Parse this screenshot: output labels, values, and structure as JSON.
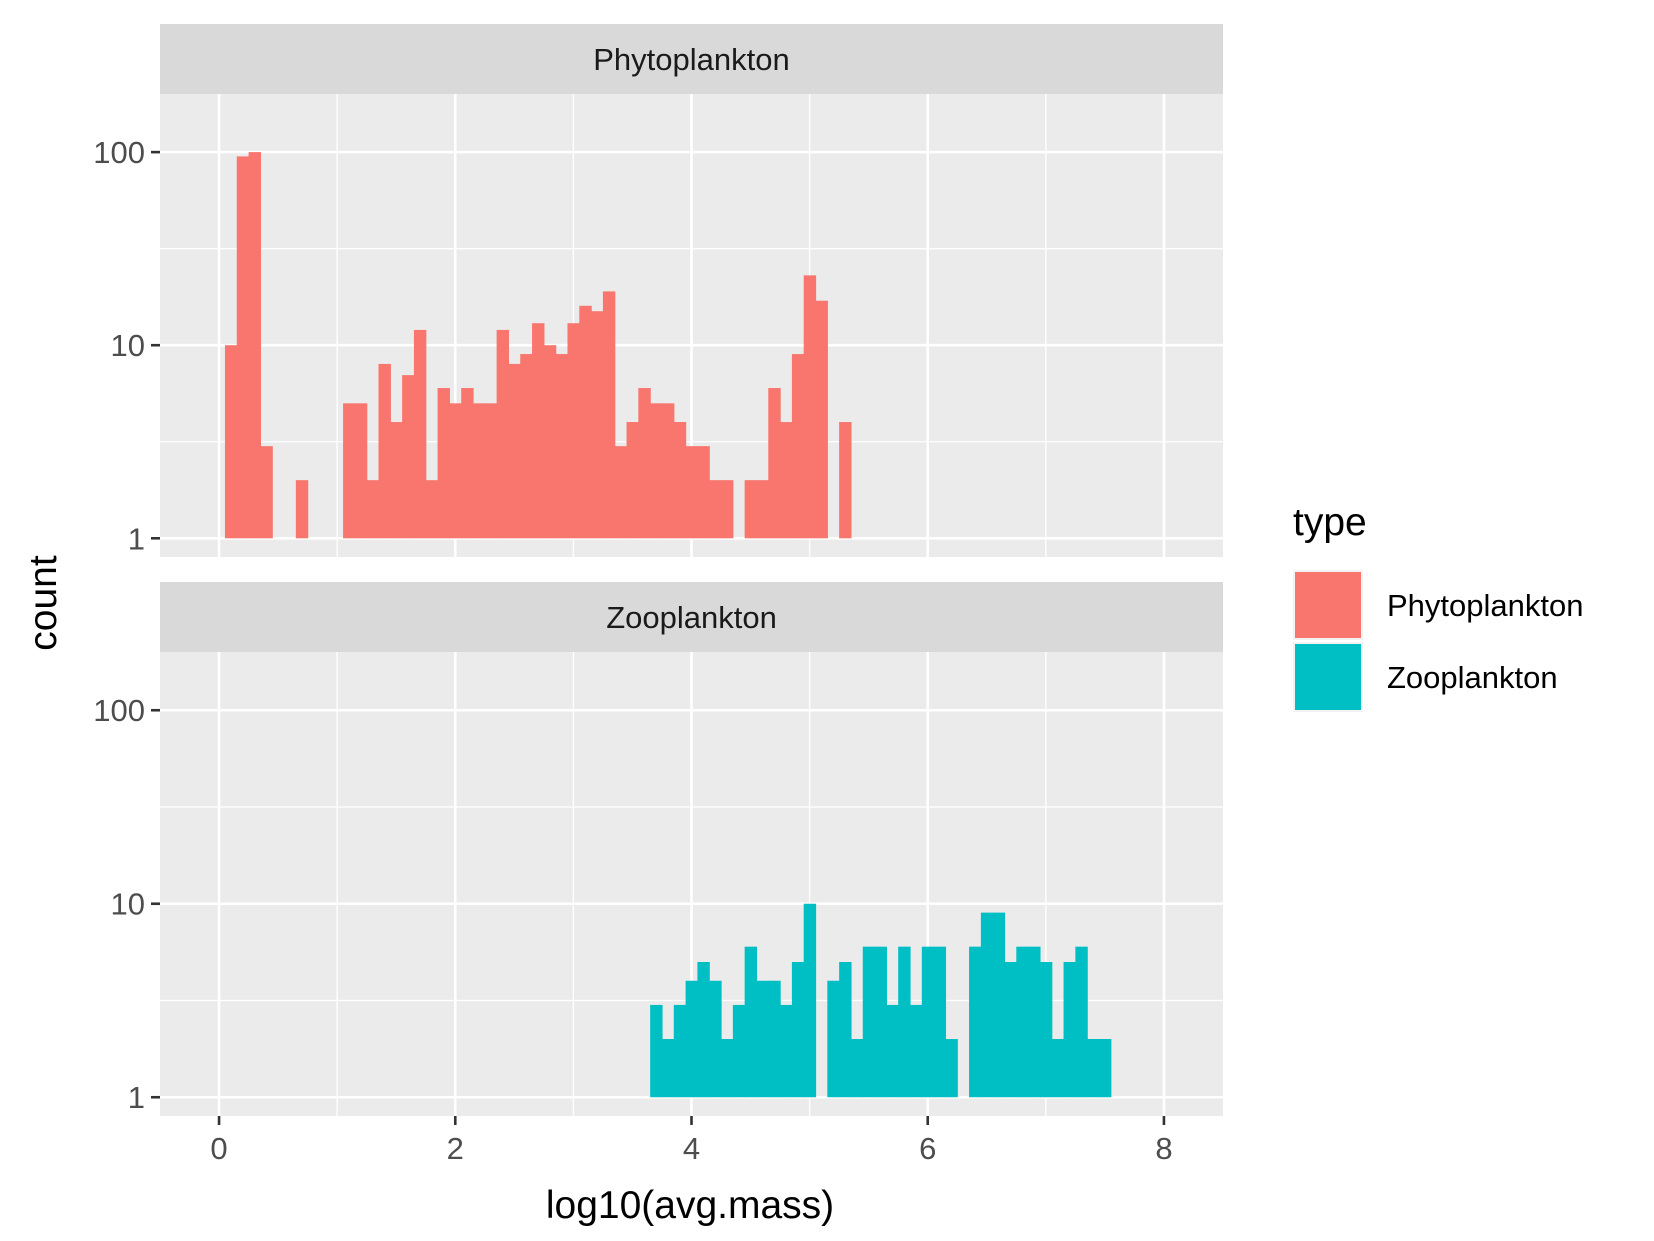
{
  "chart_data": {
    "type": "bar",
    "subtype": "faceted-histogram",
    "xlabel": "log10(avg.mass)",
    "ylabel": "count",
    "y_scale": "log10",
    "xlim": [
      -0.5,
      8.5
    ],
    "ylim": [
      0.8,
      200
    ],
    "x_ticks": [
      0,
      2,
      4,
      6,
      8
    ],
    "x_tick_labels": [
      "0",
      "2",
      "4",
      "6",
      "8"
    ],
    "y_ticks": [
      1,
      10,
      100
    ],
    "y_tick_labels": [
      "1",
      "10",
      "100"
    ],
    "bin_width": 0.1,
    "grid": true,
    "legend": {
      "title": "type",
      "position": "right",
      "entries": [
        {
          "label": "Phytoplankton",
          "color": "#F8766D"
        },
        {
          "label": "Zooplankton",
          "color": "#00BFC4"
        }
      ]
    },
    "colors": {
      "panel_background": "#EBEBEB",
      "grid": "#FFFFFF",
      "strip_background": "#D9D9D9"
    },
    "panels": [
      {
        "strip": "Phytoplankton",
        "color": "#F8766D",
        "bins": [
          [
            0.1,
            10
          ],
          [
            0.2,
            95
          ],
          [
            0.3,
            100
          ],
          [
            0.4,
            3
          ],
          [
            0.7,
            2
          ],
          [
            1.1,
            5
          ],
          [
            1.2,
            5
          ],
          [
            1.3,
            2
          ],
          [
            1.4,
            8
          ],
          [
            1.5,
            4
          ],
          [
            1.6,
            7
          ],
          [
            1.7,
            12
          ],
          [
            1.8,
            2
          ],
          [
            1.9,
            6
          ],
          [
            2.0,
            5
          ],
          [
            2.1,
            6
          ],
          [
            2.2,
            5
          ],
          [
            2.3,
            5
          ],
          [
            2.4,
            12
          ],
          [
            2.5,
            8
          ],
          [
            2.6,
            9
          ],
          [
            2.7,
            13
          ],
          [
            2.8,
            10
          ],
          [
            2.9,
            9
          ],
          [
            3.0,
            13
          ],
          [
            3.1,
            16
          ],
          [
            3.2,
            15
          ],
          [
            3.3,
            19
          ],
          [
            3.4,
            3
          ],
          [
            3.5,
            4
          ],
          [
            3.6,
            6
          ],
          [
            3.7,
            5
          ],
          [
            3.8,
            5
          ],
          [
            3.9,
            4
          ],
          [
            4.0,
            3
          ],
          [
            4.1,
            3
          ],
          [
            4.2,
            2
          ],
          [
            4.3,
            2
          ],
          [
            4.5,
            2
          ],
          [
            4.6,
            2
          ],
          [
            4.7,
            6
          ],
          [
            4.8,
            4
          ],
          [
            4.9,
            9
          ],
          [
            5.0,
            23
          ],
          [
            5.1,
            17
          ],
          [
            5.3,
            4
          ]
        ]
      },
      {
        "strip": "Zooplankton",
        "color": "#00BFC4",
        "bins": [
          [
            3.7,
            3
          ],
          [
            3.8,
            2
          ],
          [
            3.9,
            3
          ],
          [
            4.0,
            4
          ],
          [
            4.1,
            5
          ],
          [
            4.2,
            4
          ],
          [
            4.3,
            2
          ],
          [
            4.4,
            3
          ],
          [
            4.5,
            6
          ],
          [
            4.6,
            4
          ],
          [
            4.7,
            4
          ],
          [
            4.8,
            3
          ],
          [
            4.9,
            5
          ],
          [
            5.0,
            10
          ],
          [
            5.2,
            4
          ],
          [
            5.3,
            5
          ],
          [
            5.4,
            2
          ],
          [
            5.5,
            6
          ],
          [
            5.6,
            6
          ],
          [
            5.7,
            3
          ],
          [
            5.8,
            6
          ],
          [
            5.9,
            3
          ],
          [
            6.0,
            6
          ],
          [
            6.1,
            6
          ],
          [
            6.2,
            2
          ],
          [
            6.4,
            6
          ],
          [
            6.5,
            9
          ],
          [
            6.6,
            9
          ],
          [
            6.7,
            5
          ],
          [
            6.8,
            6
          ],
          [
            6.9,
            6
          ],
          [
            7.0,
            5
          ],
          [
            7.1,
            2
          ],
          [
            7.2,
            5
          ],
          [
            7.3,
            6
          ],
          [
            7.4,
            2
          ],
          [
            7.5,
            2
          ]
        ]
      }
    ]
  }
}
